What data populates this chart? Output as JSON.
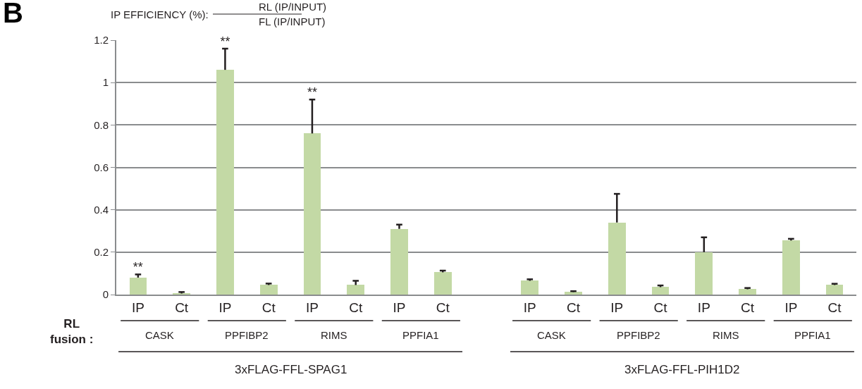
{
  "chart_data": {
    "type": "bar",
    "title": "IP EFFICIENCY (%):",
    "categories": [
      "IP",
      "Ct",
      "IP",
      "Ct",
      "IP",
      "Ct",
      "IP",
      "Ct",
      null,
      "IP",
      "Ct",
      "IP",
      "Ct",
      "IP",
      "Ct",
      "IP",
      "Ct"
    ],
    "values": [
      0.08,
      0.005,
      1.06,
      0.045,
      0.76,
      0.045,
      0.31,
      0.105,
      null,
      0.065,
      0.012,
      0.34,
      0.035,
      0.2,
      0.025,
      0.255,
      0.045
    ],
    "errors": [
      [
        0.08,
        0.095
      ],
      [
        0.005,
        0.012
      ],
      [
        1.06,
        1.16
      ],
      [
        0.045,
        0.052
      ],
      [
        0.76,
        0.92
      ],
      [
        0.045,
        0.065
      ],
      [
        0.31,
        0.33
      ],
      [
        0.105,
        0.113
      ],
      null,
      [
        0.065,
        0.072
      ],
      [
        0.012,
        0.016
      ],
      [
        0.34,
        0.475
      ],
      [
        0.035,
        0.043
      ],
      [
        0.2,
        0.27
      ],
      [
        0.025,
        0.031
      ],
      [
        0.255,
        0.263
      ],
      [
        0.045,
        0.051
      ]
    ],
    "value_labels": [
      "**",
      null,
      "**",
      null,
      "**",
      null,
      null,
      null,
      null,
      null,
      null,
      null,
      null,
      null,
      null,
      null,
      null
    ],
    "color": "#c3d9a5",
    "ylim": [
      0,
      1.2
    ],
    "yticks": [
      0,
      0.2,
      0.4,
      0.6,
      0.8,
      1,
      1.2
    ],
    "grid": "y",
    "annotations": [
      "B",
      "RL fusion :",
      "RL (IP/INPUT)",
      "FL (IP/INPUT)",
      "CASK",
      "PPFIBP2",
      "RIMS",
      "PPFIA1",
      "CASK",
      "PPFIBP2",
      "RIMS",
      "PPFIA1",
      "3xFLAG-FFL-SPAG1",
      "3xFLAG-FFL-PIH1D2"
    ]
  }
}
